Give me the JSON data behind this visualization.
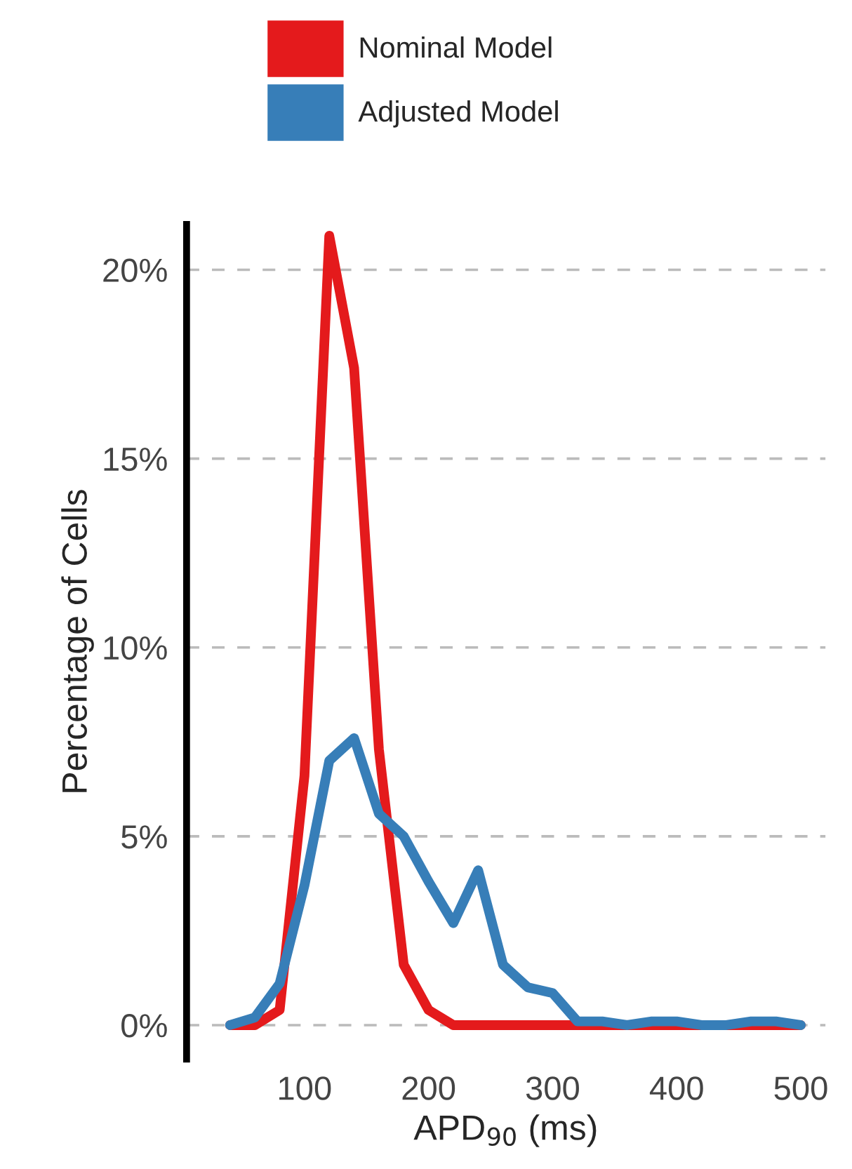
{
  "chart_data": {
    "type": "line",
    "xlabel": "APD$_{90}$ (ms)",
    "ylabel": "Percentage of Cells",
    "x": [
      40,
      60,
      80,
      100,
      120,
      140,
      160,
      180,
      200,
      220,
      240,
      260,
      280,
      300,
      320,
      340,
      360,
      380,
      400,
      420,
      440,
      460,
      480,
      500
    ],
    "series": [
      {
        "name": "Nominal Model",
        "color": "#e41a1c",
        "values": [
          0,
          0,
          0.4,
          6.6,
          20.9,
          17.4,
          7.3,
          1.6,
          0.4,
          0,
          0,
          0,
          0,
          0,
          0,
          0,
          0,
          0,
          0,
          0,
          0,
          0,
          0,
          0
        ]
      },
      {
        "name": "Adjusted Model",
        "color": "#377eb8",
        "values": [
          0,
          0.2,
          1.1,
          3.7,
          7.0,
          7.6,
          5.6,
          5.0,
          3.8,
          2.7,
          4.1,
          1.6,
          1.0,
          0.85,
          0.1,
          0.1,
          0,
          0.1,
          0.1,
          0,
          0,
          0.1,
          0.1,
          0
        ]
      }
    ],
    "xlim": [
      5,
      520
    ],
    "xticks": [
      100,
      200,
      300,
      400,
      500
    ],
    "ylim": [
      -0.9,
      21.2
    ],
    "yticks": [
      {
        "value": 0,
        "label": "0%"
      },
      {
        "value": 5,
        "label": "5%"
      },
      {
        "value": 10,
        "label": "10%"
      },
      {
        "value": 15,
        "label": "15%"
      },
      {
        "value": 20,
        "label": "20%"
      }
    ],
    "grid": "y",
    "legend": "top",
    "marker": "none",
    "line_style": "solid"
  }
}
